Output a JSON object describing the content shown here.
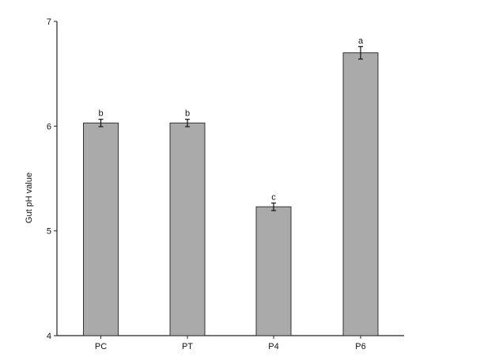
{
  "chart_data": {
    "type": "bar",
    "categories": [
      "PC",
      "PT",
      "P4",
      "P6"
    ],
    "values": [
      6.03,
      6.03,
      5.23,
      6.7
    ],
    "errors": [
      0.035,
      0.035,
      0.036,
      0.06
    ],
    "significance_letters": [
      "b",
      "b",
      "c",
      "a"
    ],
    "title": "",
    "xlabel": "",
    "ylabel": "Gut pH value",
    "ylim": [
      4,
      7
    ],
    "yticks": [
      4,
      5,
      6,
      7
    ],
    "grid": false,
    "bar_color": "#aaaaaa",
    "bar_edge_color": "#333333"
  }
}
